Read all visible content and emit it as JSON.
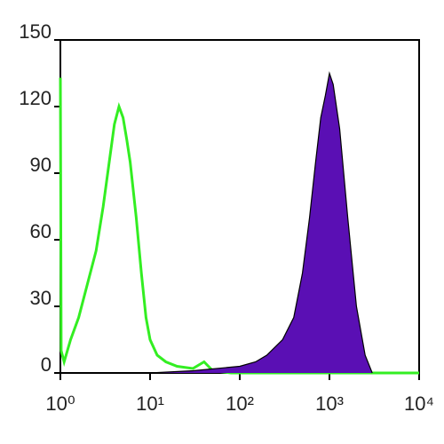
{
  "chart_data": {
    "type": "histogram",
    "xlog": true,
    "xlim": [
      1,
      10000
    ],
    "xticks": [
      {
        "value": 1,
        "label": "10⁰"
      },
      {
        "value": 10,
        "label": "10¹"
      },
      {
        "value": 100,
        "label": "10²"
      },
      {
        "value": 1000,
        "label": "10³"
      },
      {
        "value": 10000,
        "label": "10⁴"
      }
    ],
    "ylim": [
      0,
      150
    ],
    "yticks": [
      0,
      30,
      60,
      90,
      120,
      150
    ],
    "series": [
      {
        "color": "#33ee22",
        "filled": false,
        "x": [
          1,
          1.02,
          1.1,
          1.3,
          1.6,
          2,
          2.5,
          3,
          3.5,
          4,
          4.5,
          5,
          5.5,
          6,
          7,
          8,
          9,
          10,
          12,
          15,
          20,
          30,
          40,
          50,
          80,
          200,
          1000,
          10000
        ],
        "values": [
          133,
          10,
          5,
          15,
          25,
          40,
          55,
          75,
          95,
          112,
          120,
          115,
          105,
          95,
          70,
          45,
          25,
          15,
          8,
          5,
          3,
          2,
          5,
          1,
          0,
          0,
          0,
          0
        ]
      },
      {
        "color": "#5a0fb4",
        "filled": true,
        "x": [
          2,
          10,
          30,
          100,
          150,
          200,
          300,
          400,
          500,
          600,
          700,
          800,
          900,
          1000,
          1100,
          1300,
          1600,
          2000,
          2500,
          3000
        ],
        "values": [
          0,
          0,
          1,
          3,
          5,
          8,
          15,
          25,
          45,
          70,
          95,
          115,
          125,
          135,
          130,
          110,
          70,
          30,
          8,
          0
        ]
      }
    ]
  }
}
